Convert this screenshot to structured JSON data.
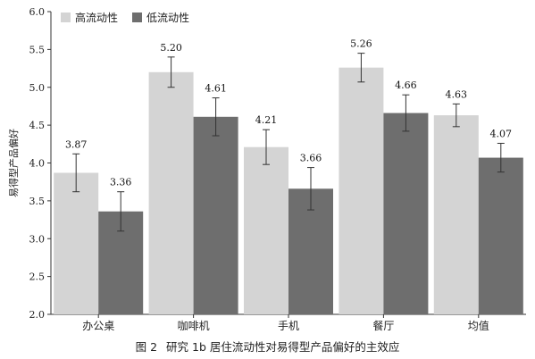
{
  "chart_data": {
    "type": "bar",
    "categories": [
      "办公桌",
      "咖啡机",
      "手机",
      "餐厅",
      "均值"
    ],
    "series": [
      {
        "name": "高流动性",
        "values": [
          3.87,
          5.2,
          4.21,
          5.26,
          4.63
        ],
        "errors": [
          0.25,
          0.2,
          0.23,
          0.19,
          0.15
        ],
        "color": "#d4d4d4"
      },
      {
        "name": "低流动性",
        "values": [
          3.36,
          4.61,
          3.66,
          4.66,
          4.07
        ],
        "errors": [
          0.26,
          0.25,
          0.28,
          0.24,
          0.19
        ],
        "color": "#6e6e6e"
      }
    ],
    "value_labels": [
      [
        "3.87",
        "5.20",
        "4.21",
        "5.26",
        "4.63"
      ],
      [
        "3.36",
        "4.61",
        "3.66",
        "4.66",
        "4.07"
      ]
    ],
    "ylabel": "易得型产品偏好",
    "ylim": [
      2.0,
      6.0
    ],
    "yticks": [
      "2.0",
      "2.5",
      "3.0",
      "3.5",
      "4.0",
      "4.5",
      "5.0",
      "5.5",
      "6.0"
    ],
    "legend_placement": "top-left",
    "grid": false
  },
  "caption": {
    "figure_number": "图 2",
    "text": "研究 1b 居住流动性对易得型产品偏好的主效应"
  }
}
